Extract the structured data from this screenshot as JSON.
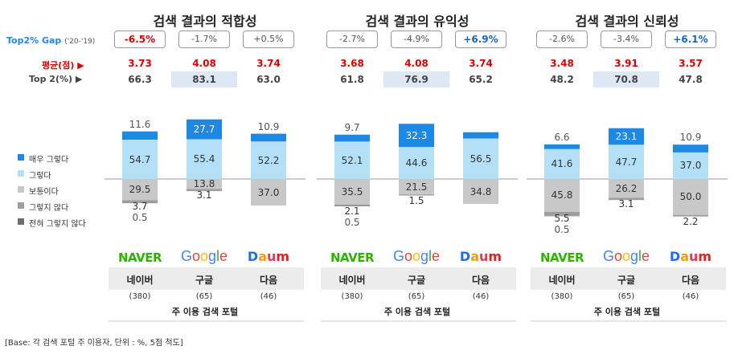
{
  "row_labels": {
    "gap_label": "Top2% Gap",
    "gap_period": "('20-'19)",
    "avg_label": "평균(점) ▶",
    "top2_label": "Top 2(%) ▶"
  },
  "legend": [
    "매우 그렇다",
    "그렇다",
    "보통이다",
    "그렇지 않다",
    "전혀 그렇지 않다"
  ],
  "colors": {
    "very_agree": "#1e88e5",
    "agree": "#b3e0f7",
    "neutral": "#c8c8c8",
    "disagree": "#9e9e9e",
    "strongly_disagree": "#6e6e6e",
    "negative_gap": "#e00000",
    "positive_gap": "#1565c0",
    "highlight": "#dde8f4"
  },
  "footer": "[Base: 각 검색 포털 주 이용자, 단위 : %, 5점 척도]",
  "portal_caption": "주 이용 검색 포털",
  "brands": {
    "naver": "NAVER",
    "google": [
      "G",
      "o",
      "o",
      "g",
      "l",
      "e"
    ],
    "daum": [
      "D",
      "a",
      "u",
      "m"
    ]
  },
  "chart_data": [
    {
      "type": "bar",
      "stacked": true,
      "title": "검색 결과의 적합성",
      "categories": [
        "네이버",
        "구글",
        "다음"
      ],
      "counts": [
        "(380)",
        "(65)",
        "(46)"
      ],
      "gap": [
        "-6.5%",
        "-1.7%",
        "+0.5%"
      ],
      "gap_style": [
        "neg",
        "plain",
        "plain"
      ],
      "avg": [
        "3.73",
        "4.08",
        "3.74"
      ],
      "top2": [
        "66.3",
        "83.1",
        "63.0"
      ],
      "highlight_index": 1,
      "series": [
        {
          "name": "매우 그렇다",
          "values": [
            11.6,
            27.7,
            10.9
          ]
        },
        {
          "name": "그렇다",
          "values": [
            54.7,
            55.4,
            52.2
          ]
        },
        {
          "name": "보통이다",
          "values": [
            29.5,
            13.8,
            37.0
          ]
        },
        {
          "name": "그렇지 않다",
          "values": [
            3.7,
            3.1,
            0
          ]
        },
        {
          "name": "전혀 그렇지 않다",
          "values": [
            0.5,
            0,
            0
          ]
        }
      ]
    },
    {
      "type": "bar",
      "stacked": true,
      "title": "검색 결과의 유익성",
      "categories": [
        "네이버",
        "구글",
        "다음"
      ],
      "counts": [
        "(380)",
        "(65)",
        "(46)"
      ],
      "gap": [
        "-2.7%",
        "-4.9%",
        "+6.9%"
      ],
      "gap_style": [
        "plain",
        "plain",
        "pos"
      ],
      "avg": [
        "3.68",
        "4.08",
        "3.74"
      ],
      "top2": [
        "61.8",
        "76.9",
        "65.2"
      ],
      "highlight_index": 1,
      "series": [
        {
          "name": "매우 그렇다",
          "values": [
            9.7,
            32.3,
            8.7
          ]
        },
        {
          "name": "그렇다",
          "values": [
            52.1,
            44.6,
            56.5
          ]
        },
        {
          "name": "보통이다",
          "values": [
            35.5,
            21.5,
            34.8
          ]
        },
        {
          "name": "그렇지 않다",
          "values": [
            2.1,
            1.5,
            0
          ]
        },
        {
          "name": "전혀 그렇지 않다",
          "values": [
            0.5,
            0,
            0
          ]
        }
      ]
    },
    {
      "type": "bar",
      "stacked": true,
      "title": "검색 결과의 신뢰성",
      "categories": [
        "네이버",
        "구글",
        "다음"
      ],
      "counts": [
        "(380)",
        "(65)",
        "(46)"
      ],
      "gap": [
        "-2.6%",
        "-3.4%",
        "+6.1%"
      ],
      "gap_style": [
        "plain",
        "plain",
        "pos"
      ],
      "avg": [
        "3.48",
        "3.91",
        "3.57"
      ],
      "top2": [
        "48.2",
        "70.8",
        "47.8"
      ],
      "highlight_index": 1,
      "series": [
        {
          "name": "매우 그렇다",
          "values": [
            6.6,
            23.1,
            10.9
          ]
        },
        {
          "name": "그렇다",
          "values": [
            41.6,
            47.7,
            37.0
          ]
        },
        {
          "name": "보통이다",
          "values": [
            45.8,
            26.2,
            50.0
          ]
        },
        {
          "name": "그렇지 않다",
          "values": [
            5.5,
            3.1,
            2.2
          ]
        },
        {
          "name": "전혀 그렇지 않다",
          "values": [
            0.5,
            0,
            0
          ]
        }
      ]
    }
  ],
  "shown_labels": [
    [
      [
        "11.6",
        "54.7",
        "29.5",
        "3.7",
        "0.5"
      ],
      [
        "27.7",
        "55.4",
        "13.8",
        "3.1",
        ""
      ],
      [
        "10.9",
        "52.2",
        "37.0",
        "",
        ""
      ]
    ],
    [
      [
        "9.7",
        "52.1",
        "35.5",
        "2.1",
        "0.5"
      ],
      [
        "32.3",
        "44.6",
        "21.5",
        "1.5",
        ""
      ],
      [
        "",
        "56.5",
        "34.8",
        "",
        ""
      ]
    ],
    [
      [
        "6.6",
        "41.6",
        "45.8",
        "5.5",
        "0.5"
      ],
      [
        "23.1",
        "47.7",
        "26.2",
        "3.1",
        ""
      ],
      [
        "10.9",
        "37.0",
        "50.0",
        "2.2",
        ""
      ]
    ]
  ]
}
